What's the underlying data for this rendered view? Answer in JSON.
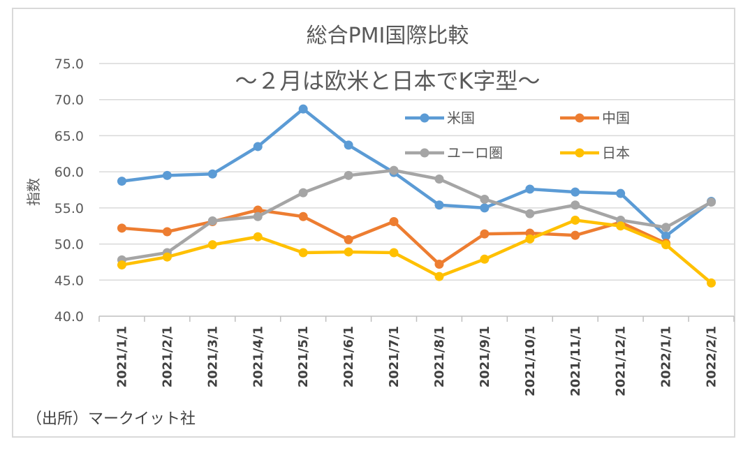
{
  "chart_data": {
    "type": "line",
    "title": "総合PMI国際比較",
    "subtitle": "～２月は欧米と日本でK字型～",
    "xlabel": "",
    "ylabel": "指数",
    "ylim": [
      40,
      75
    ],
    "yticks": [
      "40.0",
      "45.0",
      "50.0",
      "55.0",
      "60.0",
      "65.0",
      "70.0",
      "75.0"
    ],
    "ytick_values": [
      40,
      45,
      50,
      55,
      60,
      65,
      70,
      75
    ],
    "grid": true,
    "legend_position": "upper-right",
    "categories": [
      "2021/1/1",
      "2021/2/1",
      "2021/3/1",
      "2021/4/1",
      "2021/5/1",
      "2021/6/1",
      "2021/7/1",
      "2021/8/1",
      "2021/9/1",
      "2021/10/1",
      "2021/11/1",
      "2021/12/1",
      "2022/1/1",
      "2022/2/1"
    ],
    "series": [
      {
        "name": "米国",
        "color": "#5b9bd5",
        "values": [
          58.7,
          59.5,
          59.7,
          63.5,
          68.7,
          63.7,
          59.9,
          55.4,
          55.0,
          57.6,
          57.2,
          57.0,
          51.1,
          55.9
        ]
      },
      {
        "name": "中国",
        "color": "#ed7d31",
        "values": [
          52.2,
          51.7,
          53.1,
          54.7,
          53.8,
          50.6,
          53.1,
          47.2,
          51.4,
          51.5,
          51.2,
          53.0,
          50.1,
          null
        ]
      },
      {
        "name": "ユーロ圏",
        "color": "#a5a5a5",
        "values": [
          47.8,
          48.8,
          53.2,
          53.8,
          57.1,
          59.5,
          60.2,
          59.0,
          56.2,
          54.2,
          55.4,
          53.3,
          52.3,
          55.8
        ]
      },
      {
        "name": "日本",
        "color": "#ffc000",
        "values": [
          47.1,
          48.2,
          49.9,
          51.0,
          48.8,
          48.9,
          48.8,
          45.5,
          47.9,
          50.7,
          53.3,
          52.5,
          49.9,
          44.6
        ]
      }
    ]
  },
  "source_note": "（出所）マークイット社"
}
